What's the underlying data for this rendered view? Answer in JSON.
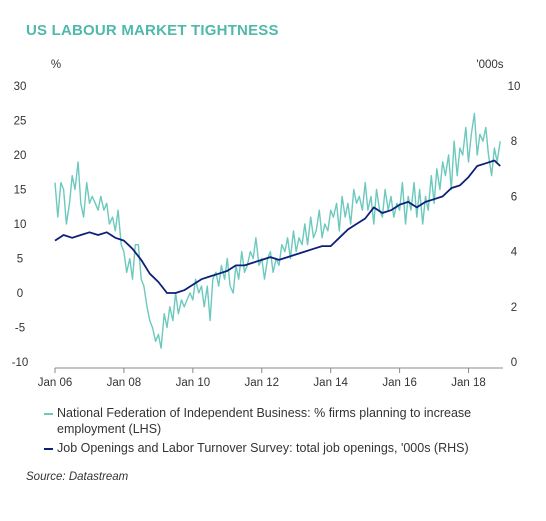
{
  "title": "US LABOUR MARKET TIGHTNESS",
  "source": "Source: Datastream",
  "colors": {
    "title": "#4fb9ac",
    "nfib": "#6cc9bd",
    "jolts": "#0d1f78",
    "axis": "#888888",
    "text": "#333333"
  },
  "chart_data": {
    "type": "line",
    "left_axis": {
      "unit_label": "%",
      "range": [
        -10,
        30
      ],
      "ticks": [
        30,
        25,
        20,
        15,
        10,
        5,
        0,
        -5,
        -10
      ]
    },
    "right_axis": {
      "unit_label": "'000s",
      "range": [
        0,
        10
      ],
      "ticks": [
        10,
        8,
        6,
        4,
        2,
        0
      ]
    },
    "x_axis": {
      "range": [
        "2006-01",
        "2019-01"
      ],
      "ticks": [
        "Jan 06",
        "Jan 08",
        "Jan 10",
        "Jan 12",
        "Jan 14",
        "Jan 16",
        "Jan 18"
      ],
      "tick_years": [
        2006,
        2008,
        2010,
        2012,
        2014,
        2016,
        2018
      ]
    },
    "grid": false,
    "legend_position": "bottom",
    "series": [
      {
        "name": "National Federation of Independent Business: % firms planning to increase employment (LHS)",
        "axis": "left",
        "x": [
          2006.0,
          2006.08,
          2006.17,
          2006.25,
          2006.33,
          2006.42,
          2006.5,
          2006.58,
          2006.67,
          2006.75,
          2006.83,
          2006.92,
          2007.0,
          2007.08,
          2007.17,
          2007.25,
          2007.33,
          2007.42,
          2007.5,
          2007.58,
          2007.67,
          2007.75,
          2007.83,
          2007.92,
          2008.0,
          2008.08,
          2008.17,
          2008.25,
          2008.33,
          2008.42,
          2008.5,
          2008.58,
          2008.67,
          2008.75,
          2008.83,
          2008.92,
          2009.0,
          2009.08,
          2009.17,
          2009.25,
          2009.33,
          2009.42,
          2009.5,
          2009.58,
          2009.67,
          2009.75,
          2009.83,
          2009.92,
          2010.0,
          2010.08,
          2010.17,
          2010.25,
          2010.33,
          2010.42,
          2010.5,
          2010.58,
          2010.67,
          2010.75,
          2010.83,
          2010.92,
          2011.0,
          2011.08,
          2011.17,
          2011.25,
          2011.33,
          2011.42,
          2011.5,
          2011.58,
          2011.67,
          2011.75,
          2011.83,
          2011.92,
          2012.0,
          2012.08,
          2012.17,
          2012.25,
          2012.33,
          2012.42,
          2012.5,
          2012.58,
          2012.67,
          2012.75,
          2012.83,
          2012.92,
          2013.0,
          2013.08,
          2013.17,
          2013.25,
          2013.33,
          2013.42,
          2013.5,
          2013.58,
          2013.67,
          2013.75,
          2013.83,
          2013.92,
          2014.0,
          2014.08,
          2014.17,
          2014.25,
          2014.33,
          2014.42,
          2014.5,
          2014.58,
          2014.67,
          2014.75,
          2014.83,
          2014.92,
          2015.0,
          2015.08,
          2015.17,
          2015.25,
          2015.33,
          2015.42,
          2015.5,
          2015.58,
          2015.67,
          2015.75,
          2015.83,
          2015.92,
          2016.0,
          2016.08,
          2016.17,
          2016.25,
          2016.33,
          2016.42,
          2016.5,
          2016.58,
          2016.67,
          2016.75,
          2016.83,
          2016.92,
          2017.0,
          2017.08,
          2017.17,
          2017.25,
          2017.33,
          2017.42,
          2017.5,
          2017.58,
          2017.67,
          2017.75,
          2017.83,
          2017.92,
          2018.0,
          2018.08,
          2018.17,
          2018.25,
          2018.33,
          2018.42,
          2018.5,
          2018.58,
          2018.67,
          2018.75,
          2018.83,
          2018.92
        ],
        "values": [
          16,
          11,
          16,
          15,
          10,
          13,
          17,
          15,
          19,
          13,
          11,
          16,
          13,
          14,
          13,
          12,
          14,
          12,
          13,
          10,
          11,
          9,
          12,
          7,
          6,
          3,
          5,
          2,
          7,
          7,
          2,
          1,
          -2,
          -4,
          -5,
          -7,
          -6,
          -8,
          -3,
          -5,
          -2,
          -4,
          0,
          -3,
          -1,
          -2,
          -1,
          0,
          -1,
          2,
          0,
          1,
          -2,
          1,
          -4,
          2,
          3,
          1,
          4,
          2,
          5,
          1,
          0,
          4,
          2,
          6,
          3,
          4,
          6,
          5,
          8,
          4,
          5,
          2,
          5,
          6,
          3,
          5,
          4,
          7,
          6,
          8,
          5,
          9,
          6,
          8,
          7,
          10,
          7,
          11,
          8,
          9,
          12,
          8,
          10,
          9,
          12,
          11,
          13,
          9,
          14,
          11,
          13,
          10,
          15,
          13,
          14,
          12,
          16,
          12,
          14,
          10,
          15,
          12,
          11,
          15,
          12,
          14,
          11,
          13,
          12,
          16,
          10,
          14,
          12,
          16,
          11,
          15,
          10,
          14,
          12,
          17,
          13,
          18,
          15,
          19,
          17,
          20,
          15,
          22,
          17,
          21,
          20,
          24,
          19,
          23,
          26,
          20,
          23,
          22,
          24,
          20,
          17,
          21,
          19,
          22
        ]
      },
      {
        "name": "Job Openings and Labor Turnover Survey: total job openings, '000s (RHS)",
        "axis": "right",
        "x": [
          2006.0,
          2006.25,
          2006.5,
          2006.75,
          2007.0,
          2007.25,
          2007.5,
          2007.75,
          2008.0,
          2008.25,
          2008.5,
          2008.75,
          2009.0,
          2009.25,
          2009.5,
          2009.75,
          2010.0,
          2010.25,
          2010.5,
          2010.75,
          2011.0,
          2011.25,
          2011.5,
          2011.75,
          2012.0,
          2012.25,
          2012.5,
          2012.75,
          2013.0,
          2013.25,
          2013.5,
          2013.75,
          2014.0,
          2014.25,
          2014.5,
          2014.75,
          2015.0,
          2015.25,
          2015.5,
          2015.75,
          2016.0,
          2016.25,
          2016.5,
          2016.75,
          2017.0,
          2017.25,
          2017.5,
          2017.75,
          2018.0,
          2018.25,
          2018.5,
          2018.75,
          2018.92
        ],
        "values": [
          4.4,
          4.6,
          4.5,
          4.6,
          4.7,
          4.6,
          4.7,
          4.5,
          4.4,
          4.1,
          3.7,
          3.2,
          2.9,
          2.5,
          2.5,
          2.6,
          2.8,
          3.0,
          3.1,
          3.2,
          3.3,
          3.5,
          3.5,
          3.6,
          3.7,
          3.8,
          3.7,
          3.8,
          3.9,
          4.0,
          4.1,
          4.2,
          4.2,
          4.5,
          4.8,
          5.0,
          5.2,
          5.6,
          5.4,
          5.5,
          5.7,
          5.8,
          5.6,
          5.8,
          5.9,
          6.0,
          6.3,
          6.4,
          6.7,
          7.1,
          7.2,
          7.3,
          7.1
        ]
      }
    ]
  }
}
